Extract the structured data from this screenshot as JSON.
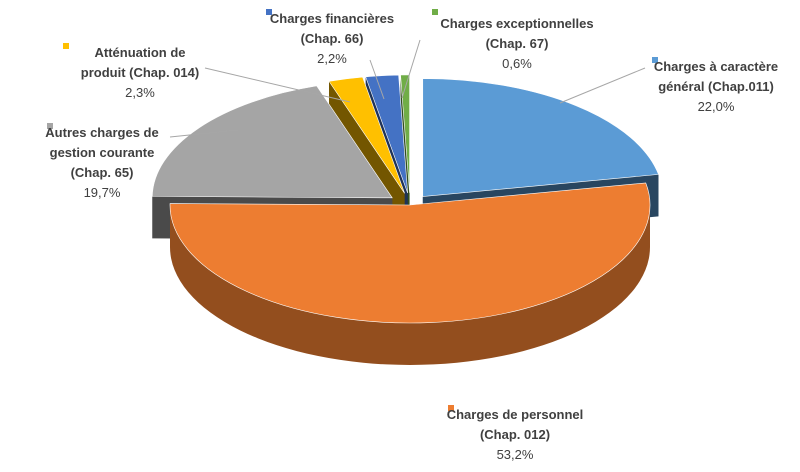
{
  "chart_data": {
    "type": "pie",
    "style": "3d",
    "legend": "none",
    "slices": [
      {
        "label_lines": [
          "Charges à caractère",
          "général (Chap.011)"
        ],
        "value": 22.0,
        "value_label": "22,0%",
        "color": "#5B9BD5"
      },
      {
        "label_lines": [
          "Charges de personnel",
          "(Chap. 012)"
        ],
        "value": 53.2,
        "value_label": "53,2%",
        "color": "#ED7D31"
      },
      {
        "label_lines": [
          "Autres charges de",
          "gestion courante",
          "(Chap. 65)"
        ],
        "value": 19.7,
        "value_label": "19,7%",
        "color": "#A5A5A5"
      },
      {
        "label_lines": [
          "Atténuation de",
          "produit (Chap. 014)"
        ],
        "value": 2.3,
        "value_label": "2,3%",
        "color": "#FFC000"
      },
      {
        "label_lines": [
          "Charges financières",
          "(Chap. 66)"
        ],
        "value": 2.2,
        "value_label": "2,2%",
        "color": "#4472C4"
      },
      {
        "label_lines": [
          "Charges exceptionnelles",
          "(Chap. 67)"
        ],
        "value": 0.6,
        "value_label": "0,6%",
        "color": "#70AD47"
      }
    ]
  }
}
